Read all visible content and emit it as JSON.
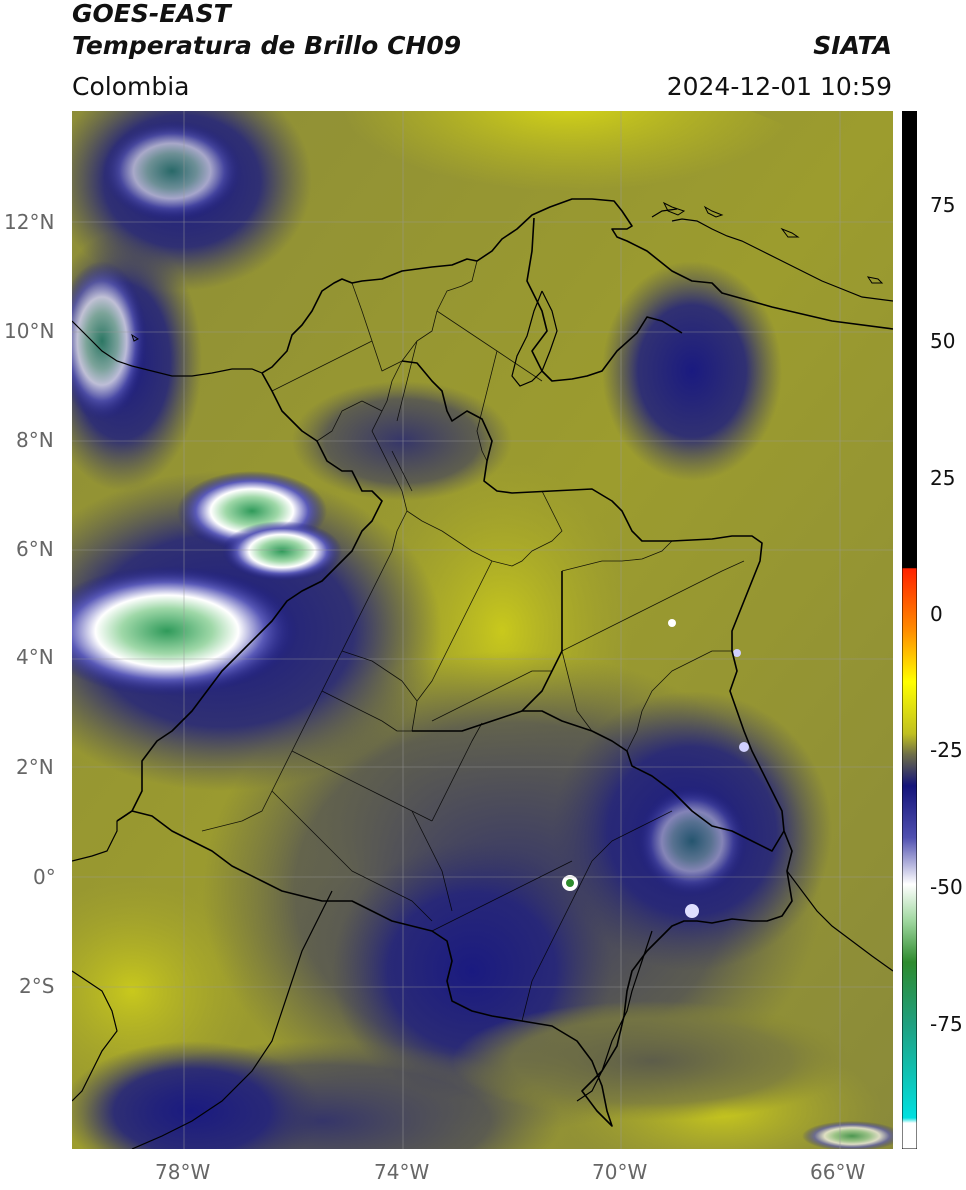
{
  "header": {
    "satellite": "GOES-EAST",
    "product": "Temperatura de Brillo CH09",
    "region": "Colombia",
    "source": "SIATA",
    "datetime": "2024-12-01 10:59"
  },
  "map": {
    "lat_ticks": [
      "12°N",
      "10°N",
      "8°N",
      "6°N",
      "4°N",
      "2°N",
      "0°",
      "2°S"
    ],
    "lon_ticks": [
      "78°W",
      "74°W",
      "70°W",
      "66°W"
    ],
    "lon_range": [
      -80,
      -65
    ],
    "lat_range": [
      -5.2,
      14
    ]
  },
  "colorbar": {
    "ticks": [
      "75",
      "50",
      "25",
      "0",
      "-25",
      "-50",
      "-75"
    ],
    "colors": {
      "yellow": "#ffff00",
      "olive": "#bcbc20",
      "grey_olive": "#6e6e48",
      "navy": "#14147a",
      "white": "#ffffff",
      "green": "#2e8b2e",
      "cyan": "#00d5d5",
      "black": "#000000",
      "red": "#ff2200"
    }
  }
}
